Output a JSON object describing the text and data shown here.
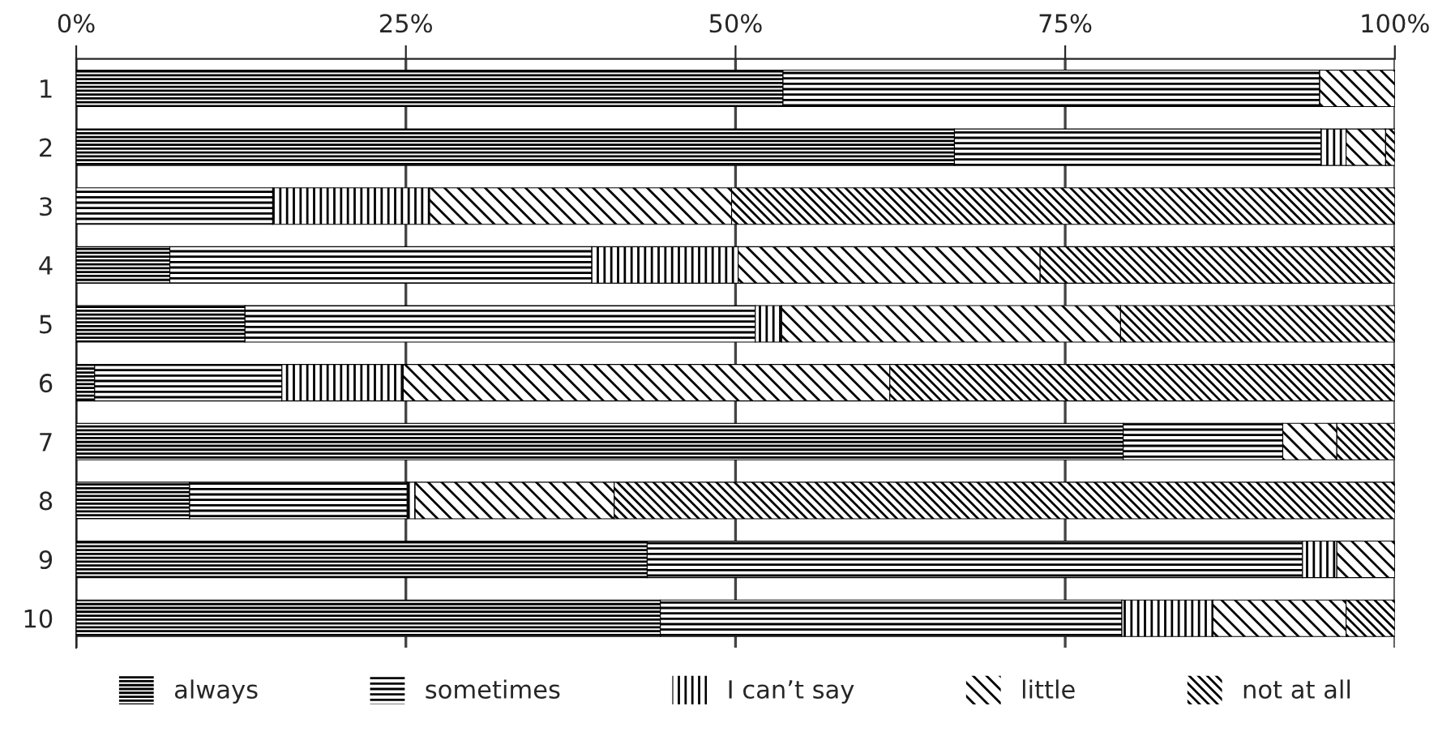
{
  "chart_data": {
    "type": "bar",
    "orientation": "horizontal",
    "stacked": true,
    "categories": [
      "1",
      "2",
      "3",
      "4",
      "5",
      "6",
      "7",
      "8",
      "9",
      "10"
    ],
    "series": [
      {
        "name": "always",
        "color": "#000000",
        "values": [
          53.6,
          66.6,
          0,
          7.1,
          12.8,
          1.4,
          79.4,
          8.6,
          43.3,
          44.3
        ]
      },
      {
        "name": "sometimes",
        "color": "#000000",
        "values": [
          40.7,
          27.8,
          14.9,
          32.0,
          38.7,
          14.2,
          12.1,
          16.5,
          49.7,
          35.0
        ]
      },
      {
        "name": "I can’t say",
        "color": "#000000",
        "values": [
          0,
          1.9,
          11.9,
          11.1,
          2.0,
          9.2,
          0,
          0.6,
          2.6,
          6.9
        ]
      },
      {
        "name": "little",
        "color": "#000000",
        "values": [
          5.7,
          3.0,
          22.9,
          22.9,
          25.7,
          36.9,
          4.1,
          15.1,
          4.4,
          10.1
        ]
      },
      {
        "name": "not at all",
        "color": "#000000",
        "values": [
          0,
          0.7,
          50.3,
          26.9,
          20.8,
          38.3,
          4.4,
          59.2,
          0,
          3.7
        ]
      }
    ],
    "xlim": [
      0,
      100
    ],
    "xticks": [
      {
        "value": 0,
        "label": "0%"
      },
      {
        "value": 25,
        "label": "25%"
      },
      {
        "value": 50,
        "label": "50%"
      },
      {
        "value": 75,
        "label": "75%"
      },
      {
        "value": 100,
        "label": "100%"
      }
    ],
    "grid": "x",
    "legend": "bottom"
  }
}
